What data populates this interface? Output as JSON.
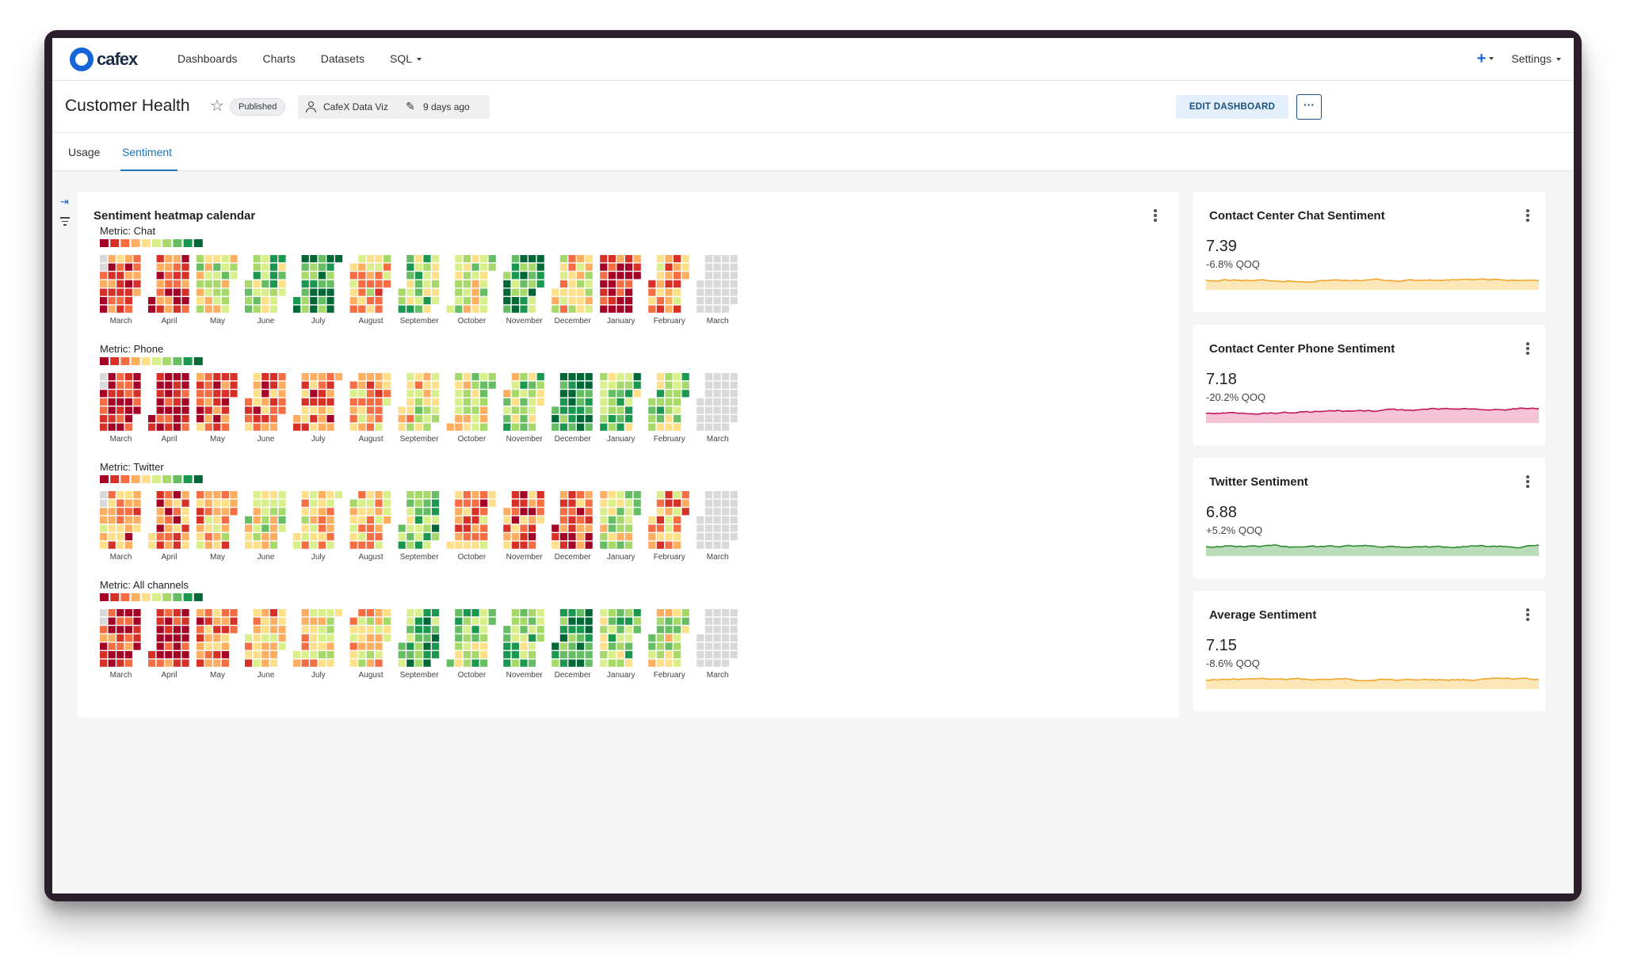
{
  "app": {
    "brand": "cafex",
    "nav": [
      {
        "label": "Dashboards",
        "dropdown": false
      },
      {
        "label": "Charts",
        "dropdown": false
      },
      {
        "label": "Datasets",
        "dropdown": false
      },
      {
        "label": "SQL",
        "dropdown": true
      }
    ],
    "settings_label": "Settings",
    "accent_color": "#1565d8"
  },
  "dashboard": {
    "title": "Customer Health",
    "status": "Published",
    "owner": "CafeX Data Viz",
    "modified": "9 days ago",
    "edit_label": "EDIT DASHBOARD",
    "more_label": "···"
  },
  "tabs": [
    {
      "label": "Usage",
      "active": false
    },
    {
      "label": "Sentiment",
      "active": true
    }
  ],
  "heatmap": {
    "title": "Sentiment heatmap calendar",
    "metrics": [
      {
        "label": "Metric: Chat",
        "seed": 11,
        "profile": [
          -1.2,
          -1.3,
          0.1,
          0.6,
          1.4,
          -0.4,
          0.5,
          0.2,
          1.3,
          0.0,
          -1.7,
          -0.8,
          null
        ]
      },
      {
        "label": "Metric: Phone",
        "seed": 23,
        "profile": [
          -1.8,
          -1.9,
          -1.3,
          -1.0,
          -0.9,
          -0.4,
          0.0,
          0.1,
          0.4,
          1.5,
          0.8,
          0.6,
          null
        ]
      },
      {
        "label": "Metric: Twitter",
        "seed": 37,
        "profile": [
          -0.9,
          -1.0,
          -0.5,
          0.2,
          -0.3,
          -0.4,
          0.9,
          -0.8,
          -1.0,
          -1.1,
          0.3,
          -0.7,
          null
        ]
      },
      {
        "label": "Metric: All channels",
        "seed": 41,
        "profile": [
          -1.5,
          -1.7,
          -1.0,
          -0.5,
          -0.2,
          -0.3,
          1.0,
          0.6,
          0.8,
          1.4,
          0.5,
          0.3,
          null
        ]
      }
    ],
    "months": [
      "March",
      "April",
      "May",
      "June",
      "July",
      "August",
      "September",
      "October",
      "November",
      "December",
      "January",
      "February",
      "March"
    ],
    "colors": [
      "#a50026",
      "#d73027",
      "#f46d43",
      "#fdae61",
      "#fee08b",
      "#d9ef8b",
      "#a6d96a",
      "#66bd63",
      "#1a9850",
      "#006837"
    ],
    "empty_color": "#d9d9d9"
  },
  "kpis": [
    {
      "title": "Contact Center Chat Sentiment",
      "value": "7.39",
      "change": "-6.8% QOQ",
      "color": "#f2a52a",
      "fill": "#fde6b8",
      "seed": 5,
      "trend": 0
    },
    {
      "title": "Contact Center Phone Sentiment",
      "value": "7.18",
      "change": "-20.2% QOQ",
      "color": "#c2185b",
      "fill": "#f4c4d6",
      "seed": 9,
      "trend": 1
    },
    {
      "title": "Twitter Sentiment",
      "value": "6.88",
      "change": "+5.2% QOQ",
      "color": "#2e8b2e",
      "fill": "#b9ddb9",
      "seed": 13,
      "trend": 0
    },
    {
      "title": "Average Sentiment",
      "value": "7.15",
      "change": "-8.6% QOQ",
      "color": "#f2a52a",
      "fill": "#fde6b8",
      "seed": 17,
      "trend": 0
    }
  ]
}
